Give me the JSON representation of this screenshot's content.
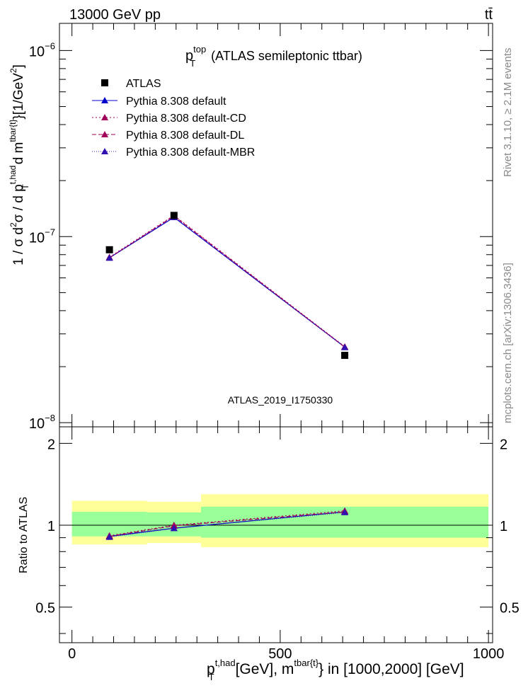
{
  "header": {
    "left": "13000 GeV pp",
    "right": "tt̄"
  },
  "side_labels": {
    "rivet": "Rivet 3.1.10, ≥ 2.1M events",
    "mcplots": "mcplots.cern.ch [arXiv:1306.3436]"
  },
  "chart_data": {
    "type": "line",
    "title_main": "p",
    "title_sup": "top",
    "title_sub": "T",
    "title_rest": "(ATLAS semileptonic ttbar)",
    "watermark": "ATLAS_2019_I1750330",
    "xlabel": {
      "p": "p",
      "sup": "t,had",
      "sub": "T",
      "mid": "[GeV], m",
      "sup2": "tbar{t}",
      "rest": "} in [1000,2000] [GeV]"
    },
    "ylabel": {
      "lead": "1 / σ d",
      "sup2": "2",
      "sigma": "σ / d p",
      "sup_t": "t,had",
      "sub_T": "T",
      "dm": "d m",
      "sup_tbar": "tbar{t}",
      "unit": "}[1/GeV",
      "unit_sup": "2",
      "close": "]"
    },
    "ratio_ylabel": "Ratio to ATLAS",
    "xlim": [
      -30,
      1010
    ],
    "ylim": [
      9.5e-09,
      1.4e-06
    ],
    "yscale": "log",
    "ratio_ylim": [
      0.37,
      2.3
    ],
    "x_ticks": [
      "0",
      "500",
      "1000"
    ],
    "x_tick_values": [
      0,
      500,
      1000
    ],
    "y_ticks": [
      {
        "value": 1e-08,
        "base": "10",
        "exp": "−8"
      },
      {
        "value": 1e-07,
        "base": "10",
        "exp": "−7"
      },
      {
        "value": 1e-06,
        "base": "10",
        "exp": "−6"
      }
    ],
    "ratio_ticks": [
      "0.5",
      "1",
      "2"
    ],
    "ratio_tick_values": [
      0.5,
      1,
      2
    ],
    "data": {
      "name": "ATLAS",
      "color": "#000000",
      "x": [
        90,
        245,
        655
      ],
      "y": [
        8.5e-08,
        1.3e-07,
        2.3e-08
      ]
    },
    "series": [
      {
        "name": "Pythia 8.308 default",
        "color": "#0000cc",
        "dash": "",
        "x": [
          90,
          245,
          655
        ],
        "y": [
          7.7e-08,
          1.27e-07,
          2.55e-08
        ],
        "ratio": [
          0.91,
          0.975,
          1.12
        ]
      },
      {
        "name": "Pythia 8.308 default-CD",
        "color": "#a0005a",
        "dash": "2,3",
        "x": [
          90,
          245,
          655
        ],
        "y": [
          7.75e-08,
          1.3e-07,
          2.56e-08
        ],
        "ratio": [
          0.915,
          1.0,
          1.13
        ]
      },
      {
        "name": "Pythia 8.308 default-DL",
        "color": "#a0005a",
        "dash": "6,3",
        "x": [
          90,
          245,
          655
        ],
        "y": [
          7.7e-08,
          1.29e-07,
          2.55e-08
        ],
        "ratio": [
          0.91,
          0.995,
          1.12
        ]
      },
      {
        "name": "Pythia 8.308 default-MBR",
        "color": "#3010b0",
        "dash": "1,2",
        "x": [
          90,
          245,
          655
        ],
        "y": [
          7.68e-08,
          1.27e-07,
          2.54e-08
        ],
        "ratio": [
          0.905,
          0.975,
          1.115
        ]
      }
    ],
    "bands": [
      {
        "x0": 0,
        "x1": 180,
        "yellow": [
          0.85,
          1.23
        ],
        "green": [
          0.91,
          1.12
        ]
      },
      {
        "x0": 180,
        "x1": 310,
        "yellow": [
          0.86,
          1.22
        ],
        "green": [
          0.91,
          1.115
        ]
      },
      {
        "x0": 310,
        "x1": 1000,
        "yellow": [
          0.83,
          1.3
        ],
        "green": [
          0.9,
          1.17
        ]
      }
    ],
    "colors": {
      "yellow": "#ffff99",
      "green": "#99ff99"
    }
  }
}
